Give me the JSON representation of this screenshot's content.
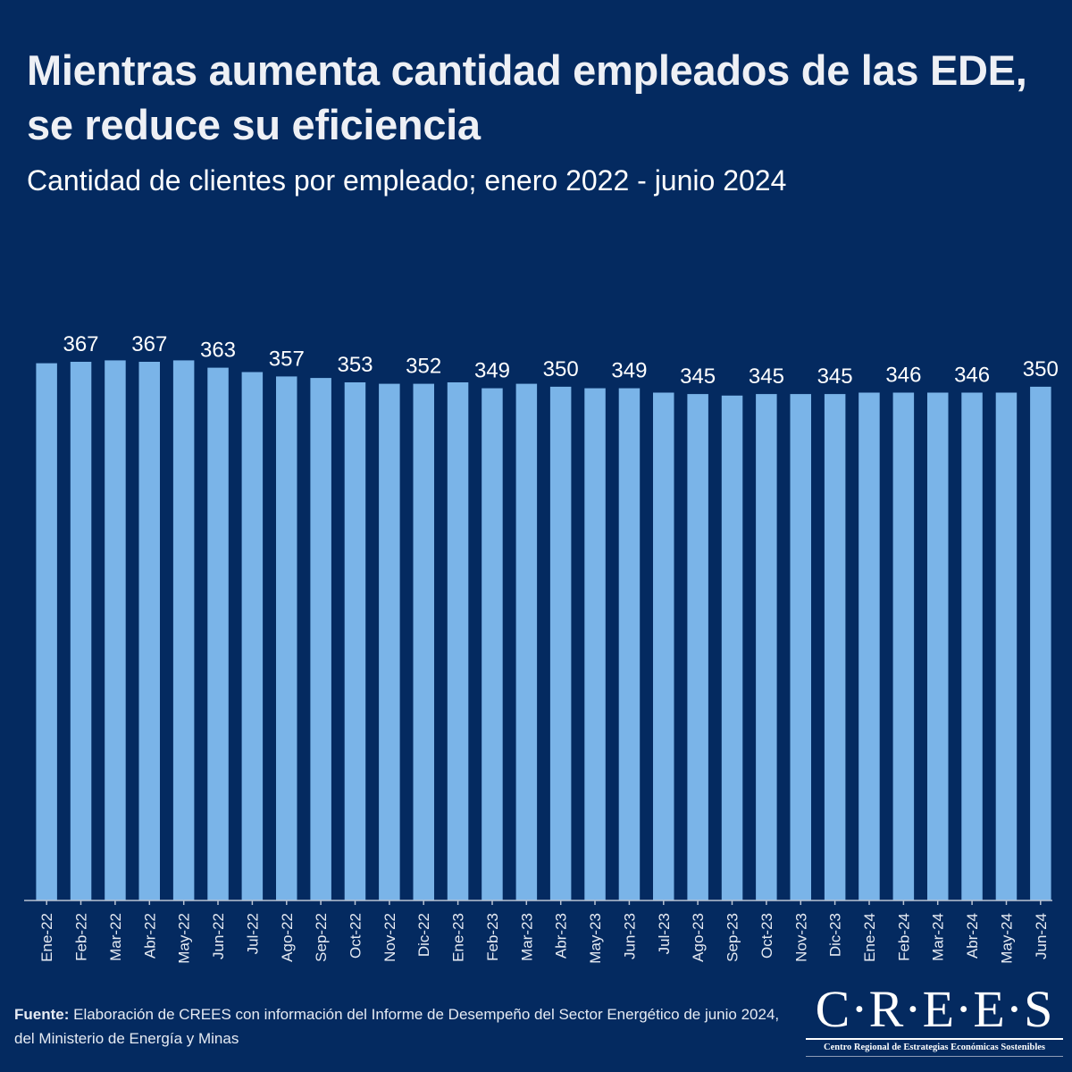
{
  "header": {
    "title": "Mientras aumenta cantidad empleados de las EDE, se reduce su eficiencia",
    "subtitle": "Cantidad de clientes por empleado; enero 2022 - junio 2024"
  },
  "chart_data": {
    "type": "bar",
    "title": "Mientras aumenta cantidad empleados de las EDE, se reduce su eficiencia",
    "subtitle": "Cantidad de clientes por empleado; enero 2022 - junio 2024",
    "xlabel": "",
    "ylabel": "Clientes por empleado",
    "ylim": [
      0,
      368
    ],
    "grid": false,
    "legend": "none",
    "bar_color": "#7ab4e8",
    "categories": [
      "Ene-22",
      "Feb-22",
      "Mar-22",
      "Abr-22",
      "May-22",
      "Jun-22",
      "Jul-22",
      "Ago-22",
      "Sep-22",
      "Oct-22",
      "Nov-22",
      "Dic-22",
      "Ene-23",
      "Feb-23",
      "Mar-23",
      "Abr-23",
      "May-23",
      "Jun-23",
      "Jul-23",
      "Ago-23",
      "Sep-23",
      "Oct-23",
      "Nov-23",
      "Dic-23",
      "Ene-24",
      "Feb-24",
      "Mar-24",
      "Abr-24",
      "May-24",
      "Jun-24"
    ],
    "values": [
      366,
      367,
      368,
      367,
      368,
      363,
      360,
      357,
      356,
      353,
      352,
      352,
      353,
      349,
      352,
      350,
      349,
      349,
      346,
      345,
      344,
      345,
      345,
      345,
      346,
      346,
      346,
      346,
      346,
      350
    ],
    "data_labels": [
      null,
      "367",
      null,
      "367",
      null,
      "363",
      null,
      "357",
      null,
      "353",
      null,
      "352",
      null,
      "349",
      null,
      "350",
      null,
      "349",
      null,
      "345",
      null,
      "345",
      null,
      "345",
      null,
      "346",
      null,
      "346",
      null,
      "350"
    ]
  },
  "footer": {
    "source_label": "Fuente:",
    "source_text": " Elaboración de CREES con información del Informe de Desempeño del Sector Energético de junio 2024, del Ministerio de Energía y Minas"
  },
  "logo": {
    "mark": "C·R·E·E·S",
    "tagline": "Centro Regional de Estrategias Económicas Sostenibles"
  },
  "colors": {
    "background": "#042a60",
    "bar": "#7ab4e8",
    "text": "#ffffff"
  }
}
